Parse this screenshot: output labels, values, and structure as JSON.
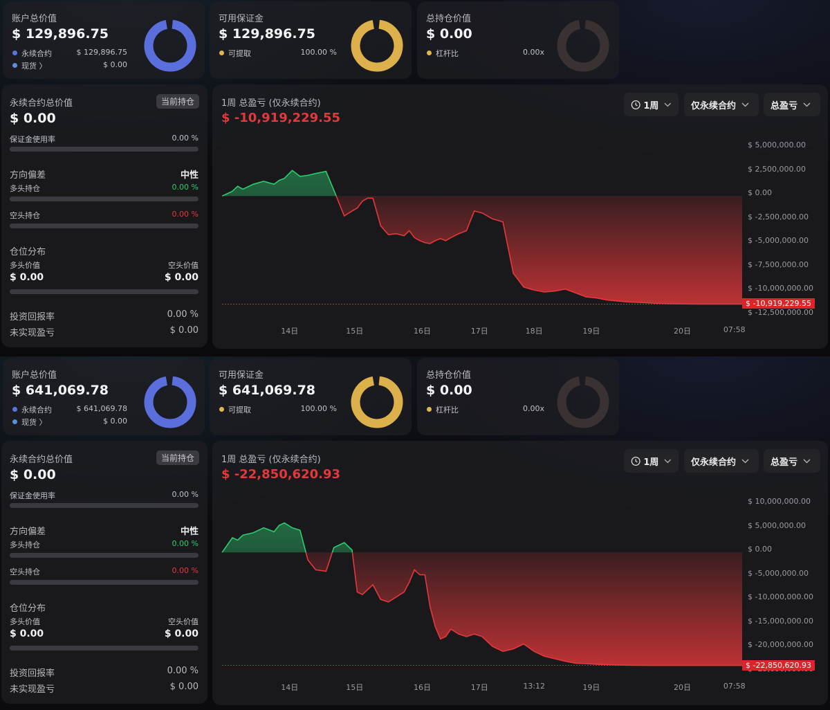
{
  "panels": [
    {
      "account": {
        "title": "账户总价值",
        "value": "$ 129,896.75",
        "legend": [
          {
            "label": "永续合约",
            "value": "$ 129,896.75",
            "color": "#5b74e0"
          },
          {
            "label": "现货 〉",
            "value": "$ 0.00",
            "color": "#5a8fdc"
          }
        ]
      },
      "margin": {
        "title": "可用保证金",
        "value": "$ 129,896.75",
        "legend": [
          {
            "label": "可提取",
            "value": "100.00 %",
            "color": "#e2b84e"
          }
        ]
      },
      "position": {
        "title": "总持仓价值",
        "value": "$ 0.00",
        "legend": [
          {
            "label": "杠杆比",
            "value": "0.00x",
            "color": "#e2b84e"
          }
        ]
      },
      "perp": {
        "title": "永续合约总价值",
        "badge": "当前持仓",
        "value": "$ 0.00",
        "usage_label": "保证金使用率",
        "usage_value": "0.00 %",
        "bias_title": "方向偏差",
        "bias_value": "中性",
        "long_label": "多头持仓",
        "long_value": "0.00 %",
        "short_label": "空头持仓",
        "short_value": "0.00 %",
        "dist_title": "仓位分布",
        "long_val_label": "多头价值",
        "short_val_label": "空头价值",
        "long_val": "$ 0.00",
        "short_val": "$ 0.00",
        "roi_label": "投资回报率",
        "roi_value": "0.00 %",
        "upnl_label": "未实现盈亏",
        "upnl_value": "$ 0.00"
      },
      "chart": {
        "title": "1周 总盈亏 (仅永续合约)",
        "total": "$ -10,919,229.55",
        "ctrl_period": "1周",
        "ctrl_scope": "仅永续合约",
        "ctrl_metric": "总盈亏"
      }
    },
    {
      "account": {
        "title": "账户总价值",
        "value": "$ 641,069.78",
        "legend": [
          {
            "label": "永续合约",
            "value": "$ 641,069.78",
            "color": "#5b74e0"
          },
          {
            "label": "现货 〉",
            "value": "$ 0.00",
            "color": "#5a8fdc"
          }
        ]
      },
      "margin": {
        "title": "可用保证金",
        "value": "$ 641,069.78",
        "legend": [
          {
            "label": "可提取",
            "value": "100.00 %",
            "color": "#e2b84e"
          }
        ]
      },
      "position": {
        "title": "总持仓价值",
        "value": "$ 0.00",
        "legend": [
          {
            "label": "杠杆比",
            "value": "0.00x",
            "color": "#e2b84e"
          }
        ]
      },
      "perp": {
        "title": "永续合约总价值",
        "badge": "当前持仓",
        "value": "$ 0.00",
        "usage_label": "保证金使用率",
        "usage_value": "0.00 %",
        "bias_title": "方向偏差",
        "bias_value": "中性",
        "long_label": "多头持仓",
        "long_value": "0.00 %",
        "short_label": "空头持仓",
        "short_value": "0.00 %",
        "dist_title": "仓位分布",
        "long_val_label": "多头价值",
        "short_val_label": "空头价值",
        "long_val": "$ 0.00",
        "short_val": "$ 0.00",
        "roi_label": "投资回报率",
        "roi_value": "0.00 %",
        "upnl_label": "未实现盈亏",
        "upnl_value": "$ 0.00"
      },
      "chart": {
        "title": "1周 总盈亏 (仅永续合约)",
        "total": "$ -22,850,620.93",
        "ctrl_period": "1周",
        "ctrl_scope": "仅永续合约",
        "ctrl_metric": "总盈亏"
      }
    }
  ],
  "colors": {
    "account_ring": "#5b6fdc",
    "margin_ring": "#dcb04a",
    "position_ring": "#3a3232",
    "profit": "#2ecc71",
    "loss": "#e5383b",
    "long": "#2ecc71",
    "short": "#e5383b"
  },
  "chart_data": [
    {
      "type": "area",
      "title": "1周 总盈亏 (仅永续合约)",
      "x_ticks": [
        "14日",
        "15日",
        "16日",
        "17日",
        "18日",
        "19日",
        "20日",
        "07:58"
      ],
      "y_ticks": [
        "$ 5,000,000.00",
        "$ 2,500,000.00",
        "$ 0.00",
        "$ -2,500,000.00",
        "$ -5,000,000.00",
        "$ -7,500,000.00",
        "$ -10,000,000.00",
        "$ -12,500,000.00"
      ],
      "ylim": [
        -12500000,
        5000000
      ],
      "last_value_label": "$ -10,919,229.55",
      "series": [
        {
          "x": [
            0,
            0.04,
            0.06,
            0.08,
            0.12,
            0.16,
            0.2,
            0.22,
            0.24,
            0.27,
            0.3,
            0.33,
            0.36,
            0.4,
            0.43,
            0.47,
            0.5,
            0.52,
            0.54,
            0.56,
            0.58,
            0.61,
            0.64,
            0.67,
            0.7,
            0.72,
            0.74,
            0.76,
            0.78,
            0.8,
            0.82,
            0.84,
            0.86,
            0.88,
            0.91,
            0.94,
            0.97,
            1.0,
            1.04,
            1.08,
            1.12,
            1.16,
            1.2,
            1.24,
            1.28,
            1.32,
            1.36,
            1.4,
            1.44,
            1.48,
            1.52,
            1.56,
            1.6,
            1.64,
            1.68,
            1.72,
            1.76,
            1.8,
            1.84,
            1.88,
            1.92,
            1.96,
            2.0
          ],
          "y": [
            0,
            500000,
            1000000,
            700000,
            1200000,
            1500000,
            1200000,
            1600000,
            1800000,
            2600000,
            2000000,
            2100000,
            2300000,
            2500000,
            600000,
            -2000000,
            -1500000,
            -1200000,
            -500000,
            -200000,
            -200000,
            -3000000,
            -3900000,
            -3800000,
            -4000000,
            -3500000,
            -4200000,
            -4500000,
            -4700000,
            -4800000,
            -4500000,
            -4300000,
            -4500000,
            -4200000,
            -3800000,
            -3500000,
            -1500000,
            -1700000,
            -2300000,
            -2600000,
            -7800000,
            -9200000,
            -9500000,
            -9700000,
            -9600000,
            -9400000,
            -9800000,
            -10200000,
            -10300000,
            -10500000,
            -10600000,
            -10700000,
            -10750000,
            -10800000,
            -10850000,
            -10880000,
            -10900000,
            -10910000,
            -10919229,
            -10919229,
            -10919229,
            -10919229,
            -10919229
          ]
        }
      ]
    },
    {
      "type": "area",
      "title": "1周 总盈亏 (仅永续合约)",
      "x_ticks": [
        "14日",
        "15日",
        "16日",
        "17日",
        "13:12",
        "19日",
        "20日",
        "07:58"
      ],
      "y_ticks": [
        "$ 10,000,000.00",
        "$ 5,000,000.00",
        "$ 0.00",
        "$ -5,000,000.00",
        "$ -10,000,000.00",
        "$ -15,000,000.00",
        "$ -20,000,000.00",
        "$ -25,000,000.00"
      ],
      "ylim": [
        -25000000,
        10000000
      ],
      "last_value_label": "$ -22,850,620.93",
      "series": [
        {
          "x": [
            0,
            0.04,
            0.06,
            0.08,
            0.12,
            0.16,
            0.2,
            0.22,
            0.24,
            0.27,
            0.3,
            0.33,
            0.36,
            0.4,
            0.43,
            0.47,
            0.5,
            0.52,
            0.54,
            0.56,
            0.58,
            0.61,
            0.64,
            0.67,
            0.7,
            0.72,
            0.74,
            0.76,
            0.78,
            0.8,
            0.82,
            0.84,
            0.86,
            0.88,
            0.91,
            0.94,
            0.97,
            1.0,
            1.04,
            1.08,
            1.12,
            1.16,
            1.2,
            1.24,
            1.28,
            1.32,
            1.36,
            1.4,
            1.44,
            1.48,
            1.52,
            1.56,
            1.6,
            1.64,
            1.68,
            1.72,
            1.76,
            1.8,
            1.84,
            1.88,
            1.92,
            1.96,
            2.0
          ],
          "y": [
            0,
            3000000,
            2500000,
            3500000,
            4000000,
            5000000,
            4200000,
            5500000,
            6000000,
            5000000,
            4500000,
            -1500000,
            -3500000,
            -3800000,
            1000000,
            2000000,
            500000,
            -8000000,
            -8500000,
            -7500000,
            -6500000,
            -9500000,
            -10000000,
            -9000000,
            -8000000,
            -6000000,
            -3500000,
            -4500000,
            -4500000,
            -11000000,
            -15000000,
            -17500000,
            -17000000,
            -15500000,
            -16500000,
            -17000000,
            -16500000,
            -17000000,
            -19000000,
            -20000000,
            -19500000,
            -18500000,
            -20000000,
            -21000000,
            -21500000,
            -22000000,
            -22400000,
            -22500000,
            -22600000,
            -22700000,
            -22750000,
            -22800000,
            -22820000,
            -22840000,
            -22850620,
            -22850620,
            -22850620,
            -22850620,
            -22850620,
            -22850620,
            -22850620,
            -22850620,
            -22850620
          ]
        }
      ]
    }
  ]
}
